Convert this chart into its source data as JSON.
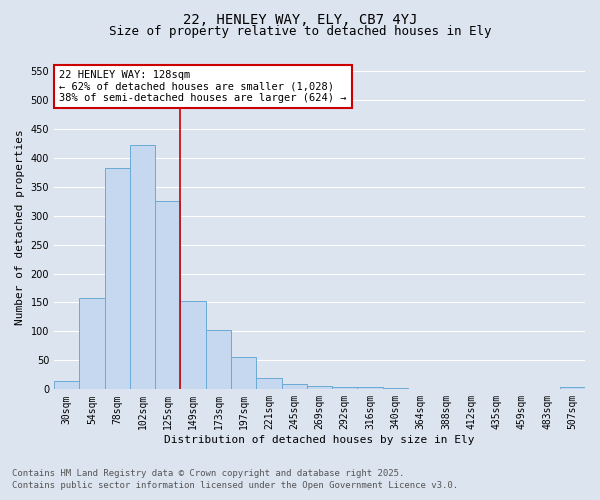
{
  "title1": "22, HENLEY WAY, ELY, CB7 4YJ",
  "title2": "Size of property relative to detached houses in Ely",
  "xlabel": "Distribution of detached houses by size in Ely",
  "ylabel": "Number of detached properties",
  "categories": [
    "30sqm",
    "54sqm",
    "78sqm",
    "102sqm",
    "125sqm",
    "149sqm",
    "173sqm",
    "197sqm",
    "221sqm",
    "245sqm",
    "269sqm",
    "292sqm",
    "316sqm",
    "340sqm",
    "364sqm",
    "388sqm",
    "412sqm",
    "435sqm",
    "459sqm",
    "483sqm",
    "507sqm"
  ],
  "values": [
    14,
    157,
    383,
    422,
    325,
    152,
    103,
    55,
    20,
    10,
    5,
    4,
    4,
    3,
    1,
    1,
    1,
    0,
    0,
    1,
    4
  ],
  "bar_color": "#c5d8f0",
  "bar_edge_color": "#6aaad4",
  "vline_color": "#cc0000",
  "annotation_title": "22 HENLEY WAY: 128sqm",
  "annotation_line1": "← 62% of detached houses are smaller (1,028)",
  "annotation_line2": "38% of semi-detached houses are larger (624) →",
  "annotation_box_facecolor": "#ffffff",
  "annotation_box_edge": "#cc0000",
  "ylim": [
    0,
    560
  ],
  "yticks": [
    0,
    50,
    100,
    150,
    200,
    250,
    300,
    350,
    400,
    450,
    500,
    550
  ],
  "footnote1": "Contains HM Land Registry data © Crown copyright and database right 2025.",
  "footnote2": "Contains public sector information licensed under the Open Government Licence v3.0.",
  "bg_color": "#dce4f0",
  "plot_bg_color": "#dce4f0",
  "grid_color": "#ffffff",
  "title1_fontsize": 10,
  "title2_fontsize": 9,
  "axis_label_fontsize": 8,
  "tick_fontsize": 7,
  "annotation_fontsize": 7.5,
  "footnote_fontsize": 6.5
}
